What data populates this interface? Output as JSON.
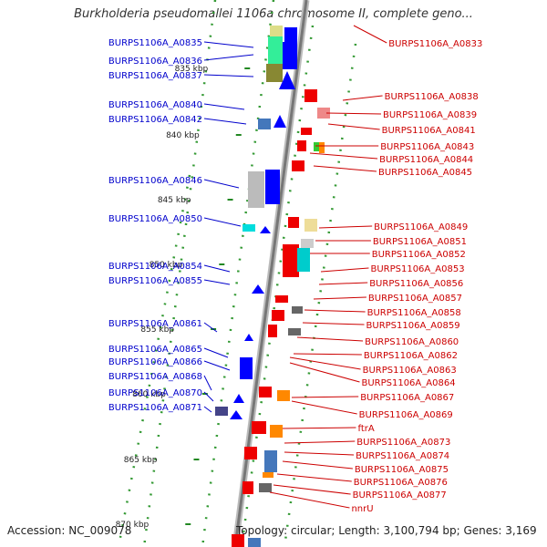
{
  "title": "Burkholderia pseudomallei 1106a chromosome II, complete geno...",
  "footer": {
    "accession": "Accession: NC_009078",
    "topology": "Topology: circular; Length: 3,100,794 bp; Genes: 3,169"
  },
  "colors": {
    "left_label": "#0000cc",
    "right_label": "#cc0000",
    "backbone": "#888888",
    "tick": "#338833"
  },
  "kbp_labels": [
    "835 kbp",
    "840 kbp",
    "845 kbp",
    "850 kbp",
    "855 kbp",
    "860 kbp",
    "865 kbp",
    "870 kbp"
  ],
  "left_genes": [
    "BURPS1106A_A0835",
    "BURPS1106A_A0836",
    "BURPS1106A_A0837",
    "BURPS1106A_A0840",
    "BURPS1106A_A0842",
    "BURPS1106A_A0846",
    "BURPS1106A_A0850",
    "BURPS1106A_A0854",
    "BURPS1106A_A0855",
    "BURPS1106A_A0861",
    "BURPS1106A_A0865",
    "BURPS1106A_A0866",
    "BURPS1106A_A0868",
    "BURPS1106A_A0870",
    "BURPS1106A_A0871"
  ],
  "right_genes": [
    "BURPS1106A_A0833",
    "BURPS1106A_A0838",
    "BURPS1106A_A0839",
    "BURPS1106A_A0841",
    "BURPS1106A_A0843",
    "BURPS1106A_A0844",
    "BURPS1106A_A0845",
    "BURPS1106A_A0849",
    "BURPS1106A_A0851",
    "BURPS1106A_A0852",
    "BURPS1106A_A0853",
    "BURPS1106A_A0856",
    "BURPS1106A_A0857",
    "BURPS1106A_A0858",
    "BURPS1106A_A0859",
    "BURPS1106A_A0860",
    "BURPS1106A_A0862",
    "BURPS1106A_A0863",
    "BURPS1106A_A0864",
    "BURPS1106A_A0867",
    "BURPS1106A_A0869",
    "ftrA",
    "BURPS1106A_A0873",
    "BURPS1106A_A0874",
    "BURPS1106A_A0875",
    "BURPS1106A_A0876",
    "BURPS1106A_A0877",
    "nnrU"
  ]
}
